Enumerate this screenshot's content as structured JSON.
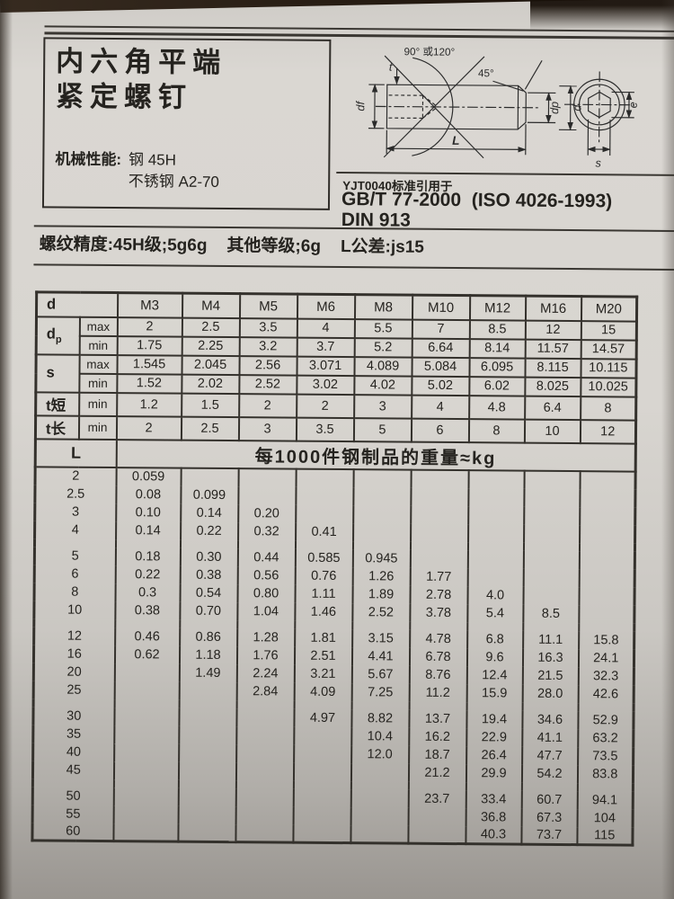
{
  "colors": {
    "paper": "#d8d5d0",
    "ink": "#25231f",
    "table_line": "#34312c",
    "book_edge": "#1d140c"
  },
  "page": {
    "title_line1": "内六角平端",
    "title_line2": "紧定螺钉",
    "mech_label": "机械性能:",
    "mech_value1": "钢 45H",
    "mech_value2": "不锈钢 A2-70",
    "standard_note": "YJT0040标准引用于",
    "standard_main": "GB/T 77-2000  (ISO 4026-1993)",
    "standard_din": "DIN 913",
    "thread_note_parts": [
      "螺纹精度:45H级;5g6g",
      "其他等级;6g",
      "L公差:js15"
    ]
  },
  "drawing": {
    "angle_top": "90° 或120°",
    "angle_45": "45°",
    "t": "t",
    "df": "df",
    "dp": "dp",
    "d": "d",
    "L": "L",
    "s": "s",
    "e": "e"
  },
  "table": {
    "d_label": "d",
    "sizes": [
      "M3",
      "M4",
      "M5",
      "M6",
      "M8",
      "M10",
      "M12",
      "M16",
      "M20"
    ],
    "spec_rows": [
      {
        "label": "d",
        "label_sub": "p",
        "rowspan": 2,
        "cond": "max",
        "values": [
          "2",
          "2.5",
          "3.5",
          "4",
          "5.5",
          "7",
          "8.5",
          "12",
          "15"
        ]
      },
      {
        "cond": "min",
        "values": [
          "1.75",
          "2.25",
          "3.2",
          "3.7",
          "5.2",
          "6.64",
          "8.14",
          "11.57",
          "14.57"
        ]
      },
      {
        "label": "s",
        "rowspan": 2,
        "cond": "max",
        "values": [
          "1.545",
          "2.045",
          "2.56",
          "3.071",
          "4.089",
          "5.084",
          "6.095",
          "8.115",
          "10.115"
        ]
      },
      {
        "cond": "min",
        "values": [
          "1.52",
          "2.02",
          "2.52",
          "3.02",
          "4.02",
          "5.02",
          "6.02",
          "8.025",
          "10.025"
        ]
      },
      {
        "label": "t短",
        "rowspan": 1,
        "cond": "min",
        "values": [
          "1.2",
          "1.5",
          "2",
          "2",
          "3",
          "4",
          "4.8",
          "6.4",
          "8"
        ]
      },
      {
        "label": "t长",
        "rowspan": 1,
        "cond": "min",
        "values": [
          "2",
          "2.5",
          "3",
          "3.5",
          "5",
          "6",
          "8",
          "10",
          "12"
        ]
      }
    ],
    "L_label": "L",
    "weight_header": "每1000件钢制品的重量≈kg",
    "weight_groups": [
      {
        "rows": [
          {
            "L": "2",
            "values": [
              "0.059",
              "",
              "",
              "",
              "",
              "",
              "",
              "",
              ""
            ]
          },
          {
            "L": "2.5",
            "values": [
              "0.08",
              "0.099",
              "",
              "",
              "",
              "",
              "",
              "",
              ""
            ]
          },
          {
            "L": "3",
            "values": [
              "0.10",
              "0.14",
              "0.20",
              "",
              "",
              "",
              "",
              "",
              ""
            ]
          },
          {
            "L": "4",
            "values": [
              "0.14",
              "0.22",
              "0.32",
              "0.41",
              "",
              "",
              "",
              "",
              ""
            ]
          }
        ]
      },
      {
        "rows": [
          {
            "L": "5",
            "values": [
              "0.18",
              "0.30",
              "0.44",
              "0.585",
              "0.945",
              "",
              "",
              "",
              ""
            ]
          },
          {
            "L": "6",
            "values": [
              "0.22",
              "0.38",
              "0.56",
              "0.76",
              "1.26",
              "1.77",
              "",
              "",
              ""
            ]
          },
          {
            "L": "8",
            "values": [
              "0.3",
              "0.54",
              "0.80",
              "1.11",
              "1.89",
              "2.78",
              "4.0",
              "",
              ""
            ]
          },
          {
            "L": "10",
            "values": [
              "0.38",
              "0.70",
              "1.04",
              "1.46",
              "2.52",
              "3.78",
              "5.4",
              "8.5",
              ""
            ]
          }
        ]
      },
      {
        "rows": [
          {
            "L": "12",
            "values": [
              "0.46",
              "0.86",
              "1.28",
              "1.81",
              "3.15",
              "4.78",
              "6.8",
              "11.1",
              "15.8"
            ]
          },
          {
            "L": "16",
            "values": [
              "0.62",
              "1.18",
              "1.76",
              "2.51",
              "4.41",
              "6.78",
              "9.6",
              "16.3",
              "24.1"
            ]
          },
          {
            "L": "20",
            "values": [
              "",
              "1.49",
              "2.24",
              "3.21",
              "5.67",
              "8.76",
              "12.4",
              "21.5",
              "32.3"
            ]
          },
          {
            "L": "25",
            "values": [
              "",
              "",
              "2.84",
              "4.09",
              "7.25",
              "11.2",
              "15.9",
              "28.0",
              "42.6"
            ]
          }
        ]
      },
      {
        "rows": [
          {
            "L": "30",
            "values": [
              "",
              "",
              "",
              "4.97",
              "8.82",
              "13.7",
              "19.4",
              "34.6",
              "52.9"
            ]
          },
          {
            "L": "35",
            "values": [
              "",
              "",
              "",
              "",
              "10.4",
              "16.2",
              "22.9",
              "41.1",
              "63.2"
            ]
          },
          {
            "L": "40",
            "values": [
              "",
              "",
              "",
              "",
              "12.0",
              "18.7",
              "26.4",
              "47.7",
              "73.5"
            ]
          },
          {
            "L": "45",
            "values": [
              "",
              "",
              "",
              "",
              "",
              "21.2",
              "29.9",
              "54.2",
              "83.8"
            ]
          }
        ]
      },
      {
        "rows": [
          {
            "L": "50",
            "values": [
              "",
              "",
              "",
              "",
              "",
              "23.7",
              "33.4",
              "60.7",
              "94.1"
            ]
          },
          {
            "L": "55",
            "values": [
              "",
              "",
              "",
              "",
              "",
              "",
              "36.8",
              "67.3",
              "104"
            ]
          },
          {
            "L": "60",
            "values": [
              "",
              "",
              "",
              "",
              "",
              "",
              "40.3",
              "73.7",
              "115"
            ]
          }
        ]
      }
    ]
  }
}
